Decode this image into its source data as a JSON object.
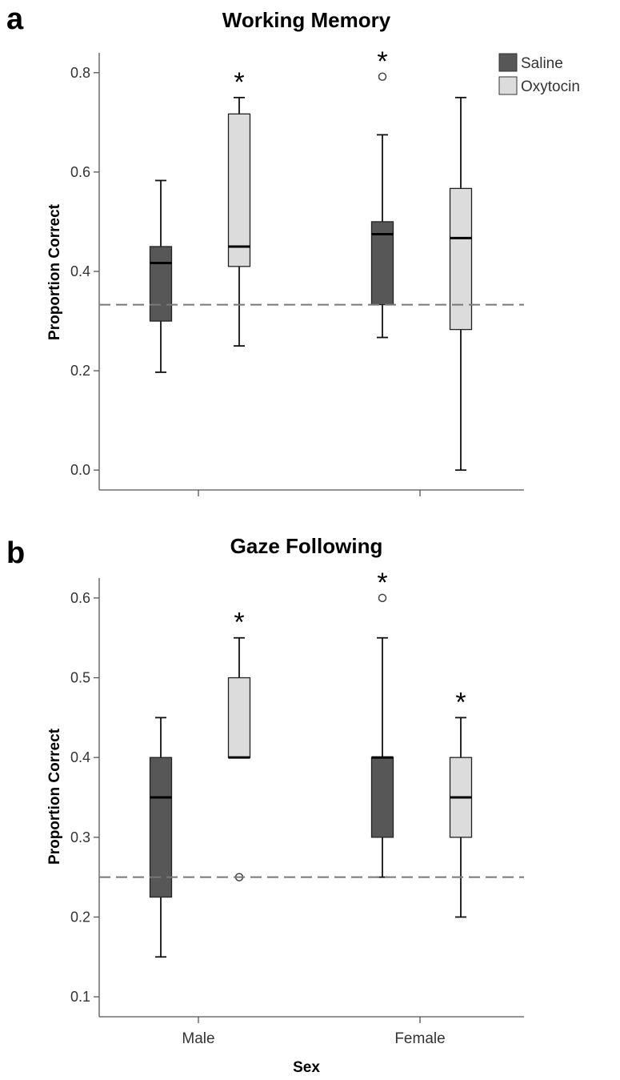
{
  "legend": {
    "position": "top-right",
    "items": [
      {
        "label": "Saline",
        "color": "#575757"
      },
      {
        "label": "Oxytocin",
        "color": "#dcdcdc"
      }
    ]
  },
  "chart_data": [
    {
      "panel_letter": "a",
      "type": "box",
      "title": "Working Memory",
      "ylabel": "Proportion Correct",
      "xlabel": "",
      "ylim": [
        -0.04,
        0.84
      ],
      "yticks": [
        "0.0",
        "0.2",
        "0.4",
        "0.6",
        "0.8"
      ],
      "ytick_values": [
        0.0,
        0.2,
        0.4,
        0.6,
        0.8
      ],
      "show_category_labels": false,
      "categories": [
        "Male",
        "Female"
      ],
      "reference_line": 0.333,
      "grid": false,
      "boxes": [
        {
          "group": "Male",
          "series": "Saline",
          "whisker_low": 0.197,
          "q1": 0.3,
          "median": 0.417,
          "q3": 0.45,
          "whisker_high": 0.583,
          "outliers": [],
          "significant": false
        },
        {
          "group": "Male",
          "series": "Oxytocin",
          "whisker_low": 0.25,
          "q1": 0.41,
          "median": 0.45,
          "q3": 0.717,
          "whisker_high": 0.75,
          "outliers": [],
          "significant": true
        },
        {
          "group": "Female",
          "series": "Saline",
          "whisker_low": 0.267,
          "q1": 0.333,
          "median": 0.475,
          "q3": 0.5,
          "whisker_high": 0.675,
          "outliers": [
            0.792
          ],
          "significant": true
        },
        {
          "group": "Female",
          "series": "Oxytocin",
          "whisker_low": 0.0,
          "q1": 0.283,
          "median": 0.467,
          "q3": 0.567,
          "whisker_high": 0.75,
          "outliers": [],
          "significant": false
        }
      ]
    },
    {
      "panel_letter": "b",
      "type": "box",
      "title": "Gaze Following",
      "ylabel": "Proportion Correct",
      "xlabel": "Sex",
      "ylim": [
        0.075,
        0.625
      ],
      "yticks": [
        "0.1",
        "0.2",
        "0.3",
        "0.4",
        "0.5",
        "0.6"
      ],
      "ytick_values": [
        0.1,
        0.2,
        0.3,
        0.4,
        0.5,
        0.6
      ],
      "show_category_labels": true,
      "categories": [
        "Male",
        "Female"
      ],
      "reference_line": 0.25,
      "grid": false,
      "boxes": [
        {
          "group": "Male",
          "series": "Saline",
          "whisker_low": 0.15,
          "q1": 0.225,
          "median": 0.35,
          "q3": 0.4,
          "whisker_high": 0.45,
          "outliers": [],
          "significant": false
        },
        {
          "group": "Male",
          "series": "Oxytocin",
          "whisker_low": 0.4,
          "q1": 0.4,
          "median": 0.4,
          "q3": 0.5,
          "whisker_high": 0.55,
          "outliers": [
            0.25
          ],
          "significant": true
        },
        {
          "group": "Female",
          "series": "Saline",
          "whisker_low": 0.25,
          "q1": 0.3,
          "median": 0.4,
          "q3": 0.4,
          "whisker_high": 0.55,
          "outliers": [
            0.6
          ],
          "significant": true
        },
        {
          "group": "Female",
          "series": "Oxytocin",
          "whisker_low": 0.2,
          "q1": 0.3,
          "median": 0.35,
          "q3": 0.4,
          "whisker_high": 0.45,
          "outliers": [],
          "significant": true
        }
      ]
    }
  ]
}
